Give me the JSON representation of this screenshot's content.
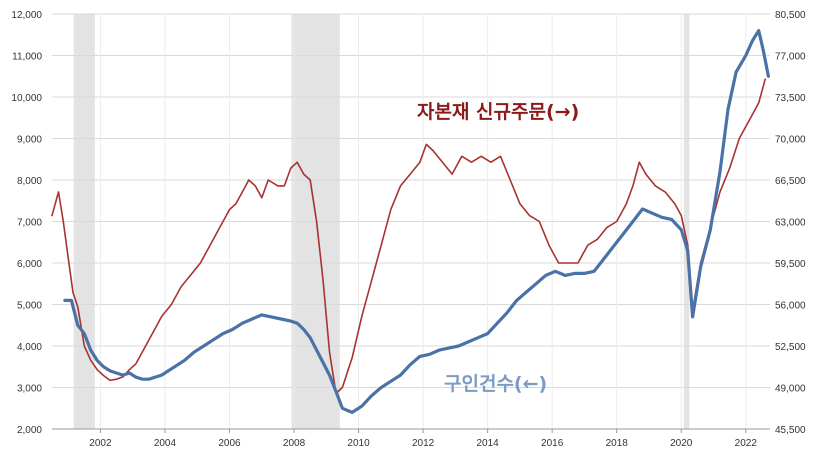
{
  "chart_data": {
    "type": "line",
    "title": "",
    "xlabel": "",
    "ylabel": "",
    "x_ticks": [
      "2002",
      "2004",
      "2006",
      "2008",
      "2010",
      "2012",
      "2014",
      "2016",
      "2018",
      "2020",
      "2022"
    ],
    "x_range": [
      2000.5,
      2022.75
    ],
    "y_left": {
      "range": [
        2000,
        12000
      ],
      "ticks": [
        "2,000",
        "3,000",
        "4,000",
        "5,000",
        "6,000",
        "7,000",
        "8,000",
        "9,000",
        "10,000",
        "11,000",
        "12,000"
      ]
    },
    "y_right": {
      "range": [
        45500,
        80500
      ],
      "ticks": [
        "45,500",
        "49,000",
        "52,500",
        "56,000",
        "59,500",
        "63,000",
        "66,500",
        "70,000",
        "73,500",
        "77,000",
        "80,500"
      ]
    },
    "recessions": [
      [
        2001.17,
        2001.83
      ],
      [
        2007.92,
        2009.42
      ],
      [
        2020.08,
        2020.25
      ]
    ],
    "grid": true,
    "series": [
      {
        "name": "자본재 신규주문(→)",
        "axis": "right",
        "color": "#a83232",
        "x": [
          2000.5,
          2000.7,
          2000.85,
          2001.0,
          2001.15,
          2001.3,
          2001.5,
          2001.7,
          2001.9,
          2002.1,
          2002.3,
          2002.5,
          2002.7,
          2002.9,
          2003.1,
          2003.3,
          2003.5,
          2003.7,
          2003.9,
          2004.2,
          2004.5,
          2004.8,
          2005.1,
          2005.4,
          2005.7,
          2006.0,
          2006.2,
          2006.4,
          2006.6,
          2006.8,
          2007.0,
          2007.2,
          2007.5,
          2007.7,
          2007.9,
          2008.1,
          2008.3,
          2008.5,
          2008.7,
          2008.9,
          2009.1,
          2009.3,
          2009.5,
          2009.8,
          2010.1,
          2010.4,
          2010.7,
          2011.0,
          2011.3,
          2011.6,
          2011.9,
          2012.1,
          2012.3,
          2012.6,
          2012.9,
          2013.2,
          2013.5,
          2013.8,
          2014.1,
          2014.4,
          2014.7,
          2015.0,
          2015.3,
          2015.6,
          2015.9,
          2016.2,
          2016.5,
          2016.8,
          2017.1,
          2017.4,
          2017.7,
          2018.0,
          2018.3,
          2018.5,
          2018.7,
          2018.9,
          2019.2,
          2019.5,
          2019.8,
          2020.0,
          2020.2,
          2020.35,
          2020.6,
          2020.9,
          2021.2,
          2021.5,
          2021.8,
          2022.1,
          2022.4,
          2022.6
        ],
        "y": [
          63500,
          65500,
          63000,
          60000,
          57000,
          55800,
          52500,
          51300,
          50500,
          50000,
          49600,
          49700,
          49900,
          50500,
          51000,
          52000,
          53000,
          54000,
          55000,
          56000,
          57500,
          58500,
          59500,
          61000,
          62500,
          64000,
          64500,
          65500,
          66500,
          66000,
          65000,
          66500,
          66000,
          66000,
          67500,
          68000,
          67000,
          66500,
          63000,
          58000,
          52000,
          48500,
          49000,
          51500,
          55000,
          58000,
          61000,
          64000,
          66000,
          67000,
          68000,
          69500,
          69000,
          68000,
          67000,
          68500,
          68000,
          68500,
          68000,
          68500,
          66500,
          64500,
          63500,
          63000,
          61000,
          59500,
          59500,
          59500,
          61000,
          61500,
          62500,
          63000,
          64500,
          66000,
          68000,
          67000,
          66000,
          65500,
          64500,
          63500,
          61000,
          55500,
          59500,
          62500,
          65500,
          67500,
          70000,
          71500,
          73000,
          75000
        ]
      },
      {
        "name": "구인건수(←)",
        "axis": "left",
        "color": "#4a72a6",
        "x": [
          2000.9,
          2001.1,
          2001.3,
          2001.5,
          2001.7,
          2001.9,
          2002.1,
          2002.3,
          2002.5,
          2002.7,
          2002.9,
          2003.1,
          2003.3,
          2003.5,
          2003.7,
          2003.9,
          2004.1,
          2004.3,
          2004.6,
          2004.9,
          2005.2,
          2005.5,
          2005.8,
          2006.1,
          2006.4,
          2006.7,
          2007.0,
          2007.3,
          2007.6,
          2007.9,
          2008.1,
          2008.3,
          2008.5,
          2008.7,
          2008.9,
          2009.1,
          2009.3,
          2009.5,
          2009.8,
          2010.1,
          2010.4,
          2010.7,
          2011.0,
          2011.3,
          2011.6,
          2011.9,
          2012.2,
          2012.5,
          2012.8,
          2013.1,
          2013.4,
          2013.7,
          2014.0,
          2014.3,
          2014.6,
          2014.9,
          2015.2,
          2015.5,
          2015.8,
          2016.1,
          2016.4,
          2016.7,
          2017.0,
          2017.3,
          2017.6,
          2017.9,
          2018.2,
          2018.5,
          2018.8,
          2019.1,
          2019.4,
          2019.7,
          2020.0,
          2020.2,
          2020.35,
          2020.6,
          2020.9,
          2021.2,
          2021.45,
          2021.7,
          2022.0,
          2022.2,
          2022.4,
          2022.55,
          2022.7
        ],
        "y": [
          5100,
          5100,
          4500,
          4300,
          3900,
          3650,
          3500,
          3400,
          3350,
          3300,
          3350,
          3250,
          3200,
          3200,
          3250,
          3300,
          3400,
          3500,
          3650,
          3850,
          4000,
          4150,
          4300,
          4400,
          4550,
          4650,
          4750,
          4700,
          4650,
          4600,
          4550,
          4400,
          4200,
          3900,
          3600,
          3300,
          2900,
          2500,
          2400,
          2550,
          2800,
          3000,
          3150,
          3300,
          3550,
          3750,
          3800,
          3900,
          3950,
          4000,
          4100,
          4200,
          4300,
          4550,
          4800,
          5100,
          5300,
          5500,
          5700,
          5800,
          5700,
          5750,
          5750,
          5800,
          6100,
          6400,
          6700,
          7000,
          7300,
          7200,
          7100,
          7050,
          6800,
          6300,
          4700,
          5900,
          6800,
          8200,
          9700,
          10600,
          11000,
          11350,
          11600,
          11100,
          10500
        ]
      }
    ]
  }
}
